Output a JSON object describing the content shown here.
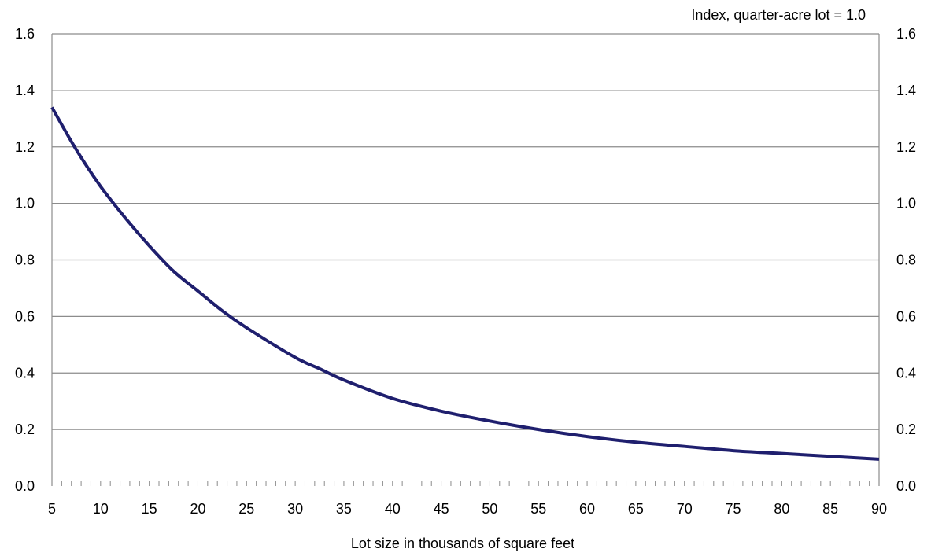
{
  "chart_data": {
    "type": "line",
    "units_label": "Index, quarter-acre lot = 1.0",
    "xlabel": "Lot size in thousands of square feet",
    "xlim": [
      5,
      90
    ],
    "ylim": [
      0,
      1.6
    ],
    "x_ticks": [
      5,
      10,
      15,
      20,
      25,
      30,
      35,
      40,
      45,
      50,
      55,
      60,
      65,
      70,
      75,
      80,
      85,
      90
    ],
    "x_tick_labels": [
      "5",
      "10",
      "15",
      "20",
      "25",
      "30",
      "35",
      "40",
      "45",
      "50",
      "55",
      "60",
      "65",
      "70",
      "75",
      "80",
      "85",
      "90"
    ],
    "y_ticks": [
      0,
      0.2,
      0.4,
      0.6,
      0.8,
      1.0,
      1.2,
      1.4,
      1.6
    ],
    "y_tick_labels": [
      "0.0",
      "0.2",
      "0.4",
      "0.6",
      "0.8",
      "1.0",
      "1.2",
      "1.4",
      "1.6"
    ],
    "grid": true,
    "legend": "none",
    "line_color": "#1f1f6e",
    "series": [
      {
        "x": [
          5,
          7.5,
          10,
          12.5,
          15,
          17.5,
          20,
          22.5,
          25,
          30,
          32.5,
          35,
          40,
          45,
          50,
          55,
          60,
          65,
          70,
          75,
          80,
          85,
          90
        ],
        "values": [
          1.34,
          1.19,
          1.06,
          0.95,
          0.85,
          0.76,
          0.69,
          0.62,
          0.56,
          0.455,
          0.415,
          0.375,
          0.31,
          0.265,
          0.23,
          0.2,
          0.175,
          0.155,
          0.14,
          0.125,
          0.115,
          0.105,
          0.095
        ]
      }
    ]
  }
}
